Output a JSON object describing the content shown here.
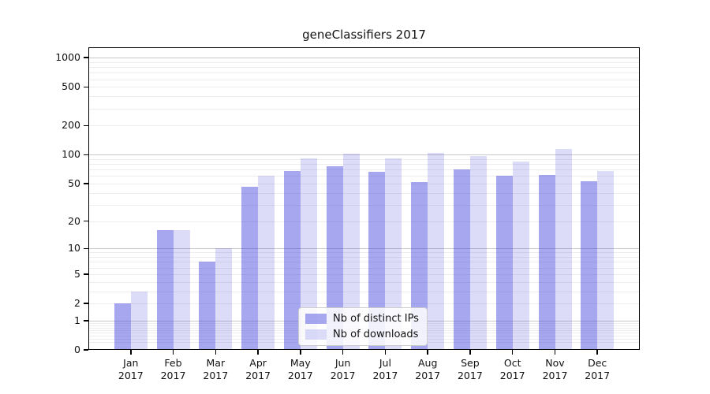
{
  "chart_data": {
    "type": "bar",
    "title": "geneClassifiers 2017",
    "categories": [
      "Jan 2017",
      "Feb 2017",
      "Mar 2017",
      "Apr 2017",
      "May 2017",
      "Jun 2017",
      "Jul 2017",
      "Aug 2017",
      "Sep 2017",
      "Oct 2017",
      "Nov 2017",
      "Dec 2017"
    ],
    "series": [
      {
        "name": "Nb of distinct IPs",
        "color": "#4444e078",
        "values": [
          2,
          16,
          7,
          46,
          68,
          76,
          67,
          52,
          70,
          60,
          62,
          53
        ]
      },
      {
        "name": "Nb of downloads",
        "color": "#4444e030",
        "values": [
          3,
          16,
          10,
          60,
          92,
          103,
          92,
          105,
          97,
          85,
          114,
          68
        ]
      }
    ],
    "xlabel": "",
    "ylabel": "",
    "yscale": "log1p",
    "yticks": [
      0,
      1,
      2,
      5,
      10,
      20,
      50,
      100,
      200,
      500,
      1000
    ],
    "ylim": [
      0,
      1280
    ],
    "grid": true,
    "legend_position": "lower-center",
    "colors": {
      "major_gridline": "#c9c9c9",
      "minor_gridline": "#ededed",
      "axis": "#000000",
      "text": "#111111"
    }
  }
}
